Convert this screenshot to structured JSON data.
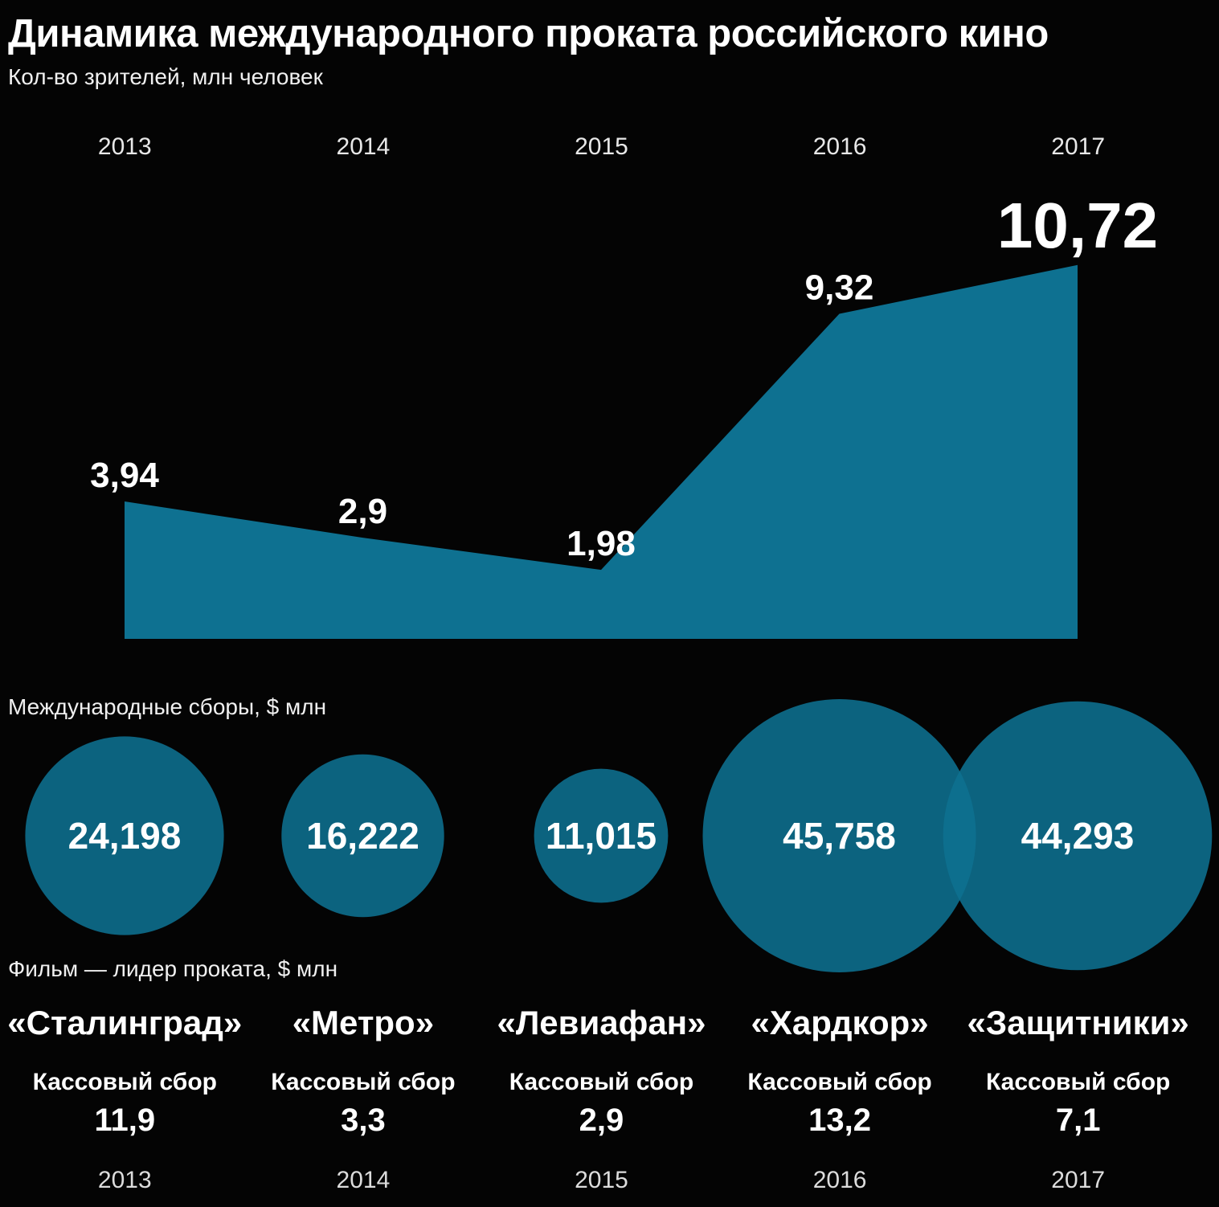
{
  "header": {
    "title": "Динамика международного проката российского кино",
    "subtitle": "Кол-во зрителей, млн человек"
  },
  "colors": {
    "background": "#040404",
    "accent": "#0e7191",
    "text": "#ffffff"
  },
  "years": [
    "2013",
    "2014",
    "2015",
    "2016",
    "2017"
  ],
  "sections": {
    "bubbles_label": "Международные сборы, $ млн",
    "films_label": "Фильм — лидер проката, $ млн"
  },
  "chart_data": [
    {
      "type": "area",
      "title": "Кол-во зрителей, млн человек",
      "categories": [
        "2013",
        "2014",
        "2015",
        "2016",
        "2017"
      ],
      "values": [
        3.94,
        2.9,
        1.98,
        9.32,
        10.72
      ],
      "value_labels": [
        "3,94",
        "2,9",
        "1,98",
        "9,32",
        "10,72"
      ],
      "ylim": [
        0,
        12
      ],
      "grid": false,
      "legend": false
    },
    {
      "type": "bubble",
      "title": "Международные сборы, $ млн",
      "categories": [
        "2013",
        "2014",
        "2015",
        "2016",
        "2017"
      ],
      "values": [
        24.198,
        16.222,
        11.015,
        45.758,
        44.293
      ],
      "value_labels": [
        "24,198",
        "16,222",
        "11,015",
        "45,758",
        "44,293"
      ]
    },
    {
      "type": "table",
      "title": "Фильм — лидер проката, $ млн",
      "categories": [
        "2013",
        "2014",
        "2015",
        "2016",
        "2017"
      ],
      "films": [
        "«Сталинград»",
        "«Метро»",
        "«Левиафан»",
        "«Хардкор»",
        "«Защитники»"
      ],
      "row_label": "Кассовый сбор",
      "values": [
        11.9,
        3.3,
        2.9,
        13.2,
        7.1
      ],
      "value_labels": [
        "11,9",
        "3,3",
        "2,9",
        "13,2",
        "7,1"
      ]
    }
  ]
}
